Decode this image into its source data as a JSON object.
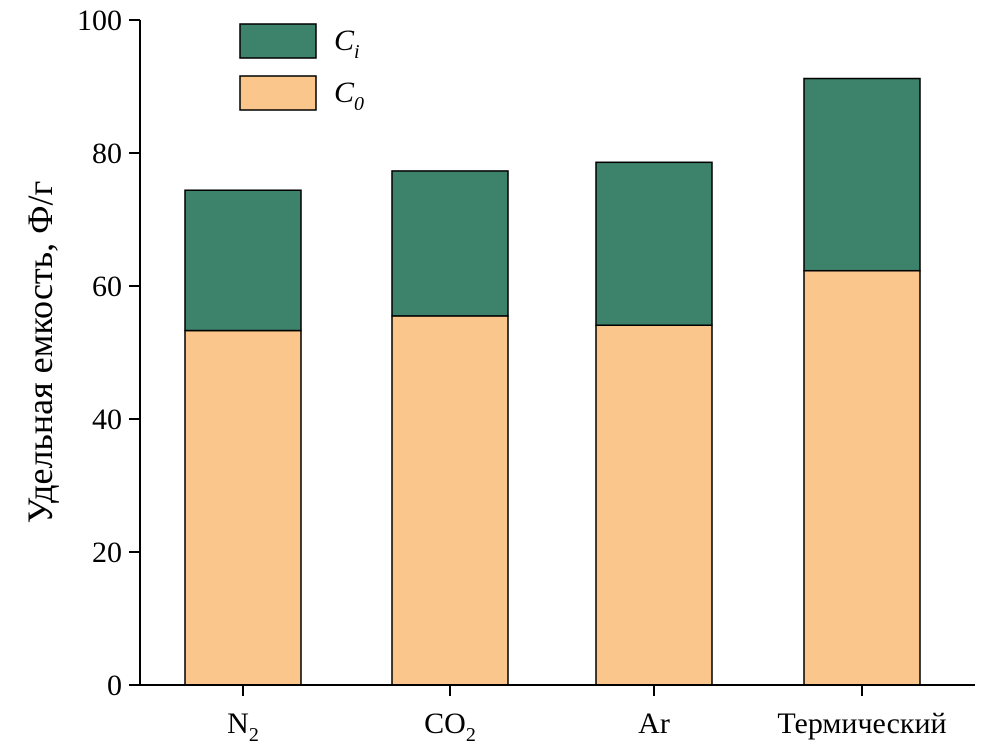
{
  "chart_data": {
    "type": "bar",
    "stacked": true,
    "categories": [
      {
        "main": "N",
        "sub": "2"
      },
      {
        "main": "CO",
        "sub": "2"
      },
      {
        "main": "Ar",
        "sub": ""
      },
      {
        "main": "Термический",
        "sub": ""
      }
    ],
    "series": [
      {
        "key": "c0",
        "name": {
          "main": "C",
          "sub": "0"
        },
        "color": "#FBC68C",
        "values": [
          53.3,
          55.5,
          54.1,
          62.3
        ]
      },
      {
        "key": "ci",
        "name": {
          "main": "C",
          "sub": "i"
        },
        "color": "#3D826A",
        "values": [
          21.1,
          21.8,
          24.5,
          28.9
        ]
      }
    ],
    "ylabel": "Удельная емкость, Ф/г",
    "xlabel": "",
    "ylim": [
      0,
      100
    ],
    "yticks": [
      "0",
      "20",
      "40",
      "60",
      "80",
      "100"
    ],
    "legend_position": "top-left",
    "grid": false
  }
}
